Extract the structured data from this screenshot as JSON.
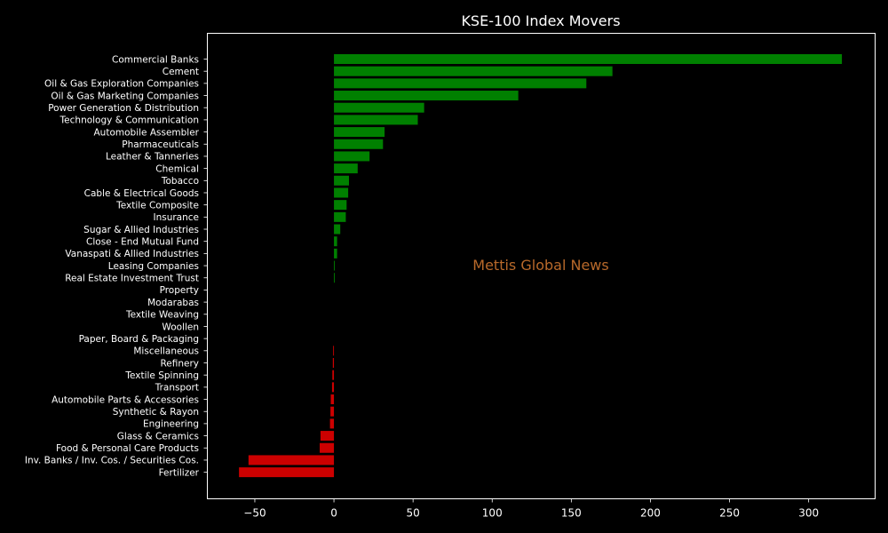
{
  "chart_data": {
    "type": "bar",
    "orientation": "horizontal",
    "title": "KSE-100 Index Movers",
    "xlabel": "",
    "ylabel": "",
    "xlim": [
      -80,
      342
    ],
    "xticks": [
      -50,
      0,
      50,
      100,
      150,
      200,
      250,
      300
    ],
    "xtick_labels": [
      "−50",
      "0",
      "50",
      "100",
      "150",
      "200",
      "250",
      "300"
    ],
    "grid": false,
    "colors": {
      "positive": "#008000",
      "negative": "#cc0000",
      "background": "#000000",
      "text": "#ffffff",
      "watermark": "#b8692a"
    },
    "categories": [
      "Commercial Banks",
      "Cement",
      "Oil & Gas Exploration Companies",
      "Oil & Gas Marketing Companies",
      "Power Generation & Distribution",
      "Technology & Communication",
      "Automobile Assembler",
      "Pharmaceuticals",
      "Leather & Tanneries",
      "Chemical",
      "Tobacco",
      "Cable & Electrical Goods",
      "Textile Composite",
      "Insurance",
      "Sugar & Allied Industries",
      "Close - End Mutual Fund",
      "Vanaspati & Allied Industries",
      "Leasing Companies",
      "Real Estate Investment Trust",
      "Property",
      "Modarabas",
      "Textile Weaving",
      "Woollen",
      "Paper, Board & Packaging",
      "Miscellaneous",
      "Refinery",
      "Textile Spinning",
      "Transport",
      "Automobile Parts & Accessories",
      "Synthetic & Rayon",
      "Engineering",
      "Glass & Ceramics",
      "Food & Personal Care Products",
      "Inv. Banks / Inv. Cos. / Securities Cos.",
      "Fertilizer"
    ],
    "values": [
      321,
      176,
      159.5,
      116.5,
      57,
      53,
      32,
      31,
      22.5,
      15,
      9.5,
      9,
      8,
      7.5,
      4,
      2,
      2,
      0.5,
      0.5,
      0,
      0,
      0,
      0,
      0,
      -0.5,
      -0.7,
      -1,
      -1.2,
      -2,
      -2.2,
      -2.5,
      -8.5,
      -9,
      -54,
      -60
    ],
    "watermark": "Mettis Global News"
  }
}
